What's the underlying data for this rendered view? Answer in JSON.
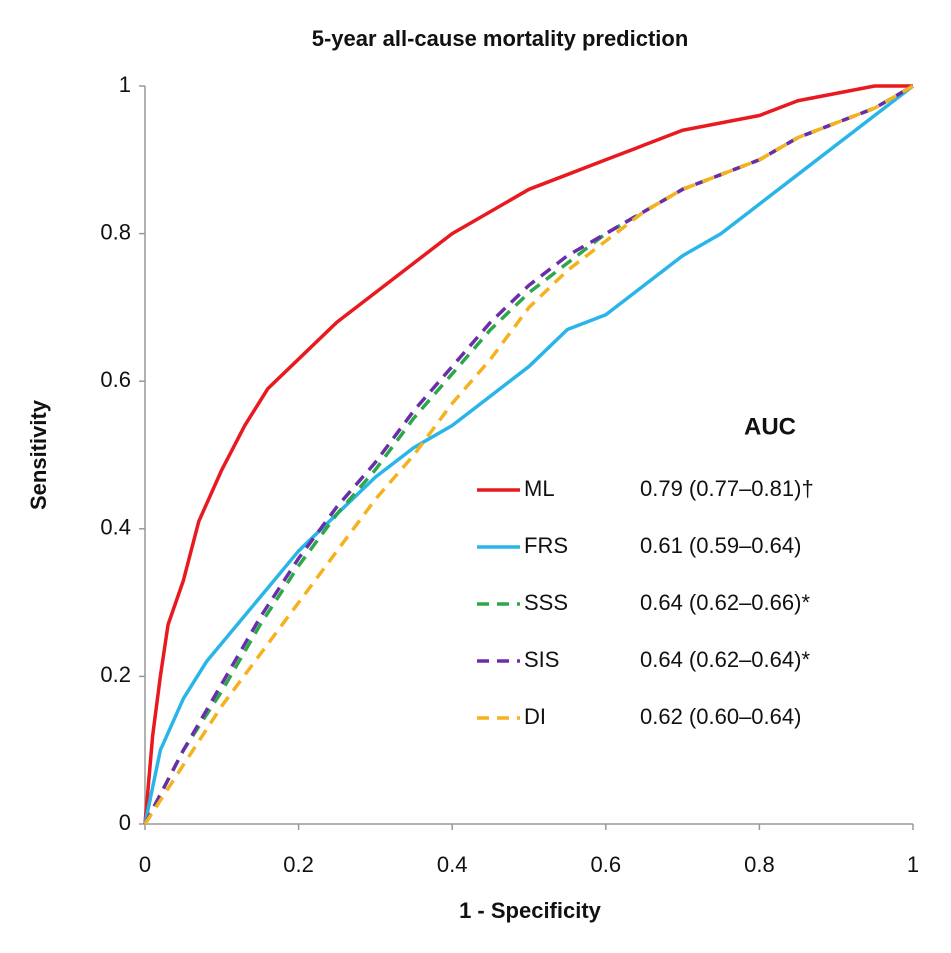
{
  "chart_data": {
    "type": "line",
    "title": "5-year all-cause mortality prediction",
    "xlabel": "1 - Specificity",
    "ylabel": "Sensitivity",
    "xlim": [
      0,
      1
    ],
    "ylim": [
      0,
      1
    ],
    "xticks": [
      0,
      0.2,
      0.4,
      0.6,
      0.8,
      1
    ],
    "yticks": [
      0,
      0.2,
      0.4,
      0.6,
      0.8,
      1
    ],
    "grid": false,
    "legend_title": "AUC",
    "series": [
      {
        "name": "ML",
        "color": "#e8191f",
        "dash": false,
        "auc": "0.79 (0.77–0.81)†",
        "x": [
          0,
          0.01,
          0.02,
          0.03,
          0.05,
          0.07,
          0.1,
          0.13,
          0.16,
          0.2,
          0.25,
          0.3,
          0.35,
          0.4,
          0.45,
          0.5,
          0.55,
          0.6,
          0.65,
          0.7,
          0.75,
          0.8,
          0.85,
          0.9,
          0.95,
          1
        ],
        "values": [
          0,
          0.12,
          0.2,
          0.27,
          0.33,
          0.41,
          0.48,
          0.54,
          0.59,
          0.63,
          0.68,
          0.72,
          0.76,
          0.8,
          0.83,
          0.86,
          0.88,
          0.9,
          0.92,
          0.94,
          0.95,
          0.96,
          0.98,
          0.99,
          1,
          1
        ]
      },
      {
        "name": "FRS",
        "color": "#29b5e8",
        "dash": false,
        "auc": "0.61 (0.59–0.64)",
        "x": [
          0,
          0.02,
          0.05,
          0.08,
          0.12,
          0.16,
          0.2,
          0.25,
          0.3,
          0.35,
          0.4,
          0.45,
          0.5,
          0.55,
          0.6,
          0.65,
          0.7,
          0.75,
          0.8,
          0.85,
          0.9,
          0.95,
          1
        ],
        "values": [
          0,
          0.1,
          0.17,
          0.22,
          0.27,
          0.32,
          0.37,
          0.42,
          0.47,
          0.51,
          0.54,
          0.58,
          0.62,
          0.67,
          0.69,
          0.73,
          0.77,
          0.8,
          0.84,
          0.88,
          0.92,
          0.96,
          1
        ]
      },
      {
        "name": "SSS",
        "color": "#2ca84a",
        "dash": true,
        "auc": "0.64 (0.62–0.66)*",
        "x": [
          0,
          0.05,
          0.1,
          0.15,
          0.2,
          0.25,
          0.3,
          0.35,
          0.4,
          0.45,
          0.5,
          0.55,
          0.6,
          0.65,
          0.7,
          0.75,
          0.8,
          0.85,
          0.9,
          0.95,
          1
        ],
        "values": [
          0,
          0.1,
          0.18,
          0.27,
          0.35,
          0.42,
          0.48,
          0.55,
          0.61,
          0.67,
          0.72,
          0.76,
          0.8,
          0.83,
          0.86,
          0.88,
          0.9,
          0.93,
          0.95,
          0.97,
          1
        ]
      },
      {
        "name": "SIS",
        "color": "#6a2fa8",
        "dash": true,
        "auc": "0.64 (0.62–0.64)*",
        "x": [
          0,
          0.05,
          0.1,
          0.15,
          0.2,
          0.25,
          0.3,
          0.35,
          0.4,
          0.45,
          0.5,
          0.55,
          0.6,
          0.65,
          0.7,
          0.75,
          0.8,
          0.85,
          0.9,
          0.95,
          1
        ],
        "values": [
          0,
          0.1,
          0.19,
          0.28,
          0.36,
          0.43,
          0.49,
          0.56,
          0.62,
          0.68,
          0.73,
          0.77,
          0.8,
          0.83,
          0.86,
          0.88,
          0.9,
          0.93,
          0.95,
          0.97,
          1
        ]
      },
      {
        "name": "DI",
        "color": "#f5b21e",
        "dash": true,
        "auc": "0.62 (0.60–0.64)",
        "x": [
          0,
          0.05,
          0.1,
          0.15,
          0.2,
          0.25,
          0.3,
          0.35,
          0.4,
          0.45,
          0.5,
          0.55,
          0.6,
          0.65,
          0.7,
          0.75,
          0.8,
          0.85,
          0.9,
          0.95,
          1
        ],
        "values": [
          0,
          0.08,
          0.16,
          0.23,
          0.3,
          0.37,
          0.44,
          0.5,
          0.57,
          0.63,
          0.7,
          0.75,
          0.79,
          0.83,
          0.86,
          0.88,
          0.9,
          0.93,
          0.95,
          0.97,
          1
        ]
      }
    ]
  }
}
